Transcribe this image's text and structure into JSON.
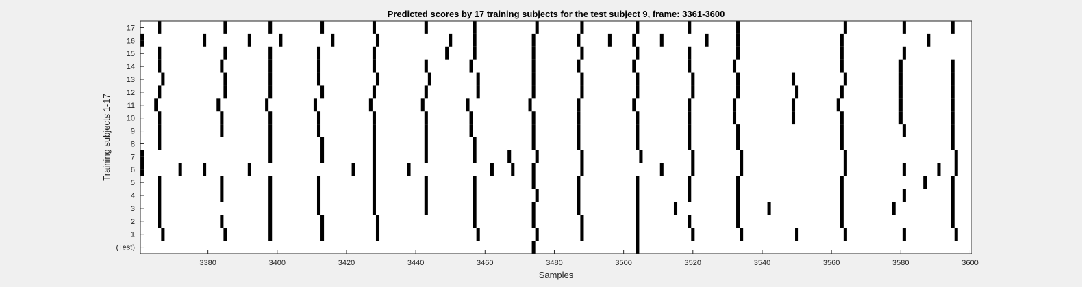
{
  "chart_data": {
    "type": "raster",
    "title": "Predicted scores by 17 training subjects for the test subject 9, frame: 3361-3600",
    "xlabel": "Samples",
    "ylabel": "Training subjects 1-17",
    "xlim": [
      3361,
      3600
    ],
    "xticks": [
      3380,
      3400,
      3420,
      3440,
      3460,
      3480,
      3500,
      3520,
      3540,
      3560,
      3580,
      3600
    ],
    "ytick_labels": [
      "(Test)",
      "1",
      "2",
      "3",
      "4",
      "5",
      "6",
      "7",
      "8",
      "9",
      "10",
      "11",
      "12",
      "13",
      "14",
      "15",
      "16",
      "17"
    ],
    "rows": [
      {
        "label": "(Test)",
        "samples": [
          3474,
          3504
        ]
      },
      {
        "label": "1",
        "samples": [
          3367,
          3385,
          3398,
          3413,
          3429,
          3458,
          3475,
          3488,
          3504,
          3520,
          3534,
          3550,
          3564,
          3581,
          3596
        ]
      },
      {
        "label": "2",
        "samples": [
          3366,
          3384,
          3398,
          3413,
          3429,
          3457,
          3474,
          3488,
          3504,
          3519,
          3533,
          3563,
          3595
        ]
      },
      {
        "label": "3",
        "samples": [
          3366,
          3398,
          3412,
          3428,
          3443,
          3457,
          3474,
          3487,
          3504,
          3515,
          3533,
          3542,
          3563,
          3578,
          3595
        ]
      },
      {
        "label": "4",
        "samples": [
          3366,
          3384,
          3398,
          3412,
          3428,
          3443,
          3457,
          3475,
          3487,
          3504,
          3519,
          3533,
          3563,
          3581,
          3595
        ]
      },
      {
        "label": "5",
        "samples": [
          3366,
          3384,
          3398,
          3412,
          3428,
          3443,
          3457,
          3474,
          3487,
          3504,
          3519,
          3533,
          3563,
          3587,
          3595
        ]
      },
      {
        "label": "6",
        "samples": [
          3361,
          3372,
          3379,
          3392,
          3422,
          3428,
          3438,
          3462,
          3468,
          3474,
          3488,
          3511,
          3520,
          3534,
          3564,
          3581,
          3591,
          3596
        ]
      },
      {
        "label": "7",
        "samples": [
          3361,
          3398,
          3413,
          3428,
          3443,
          3457,
          3467,
          3475,
          3488,
          3505,
          3520,
          3534,
          3564,
          3596
        ]
      },
      {
        "label": "8",
        "samples": [
          3366,
          3398,
          3413,
          3428,
          3443,
          3457,
          3474,
          3487,
          3504,
          3519,
          3533,
          3563,
          3595
        ]
      },
      {
        "label": "9",
        "samples": [
          3366,
          3384,
          3398,
          3412,
          3428,
          3443,
          3456,
          3474,
          3487,
          3504,
          3519,
          3533,
          3563,
          3581,
          3595
        ]
      },
      {
        "label": "10",
        "samples": [
          3366,
          3384,
          3398,
          3412,
          3428,
          3443,
          3456,
          3474,
          3487,
          3504,
          3519,
          3532,
          3549,
          3563,
          3580,
          3595
        ]
      },
      {
        "label": "11",
        "samples": [
          3365,
          3383,
          3397,
          3411,
          3427,
          3442,
          3455,
          3473,
          3487,
          3503,
          3519,
          3532,
          3549,
          3562,
          3580,
          3595
        ]
      },
      {
        "label": "12",
        "samples": [
          3366,
          3385,
          3398,
          3413,
          3428,
          3443,
          3458,
          3474,
          3488,
          3504,
          3520,
          3533,
          3550,
          3563,
          3580,
          3595
        ]
      },
      {
        "label": "13",
        "samples": [
          3367,
          3385,
          3398,
          3412,
          3429,
          3444,
          3458,
          3474,
          3488,
          3504,
          3520,
          3533,
          3549,
          3564,
          3580,
          3595
        ]
      },
      {
        "label": "14",
        "samples": [
          3366,
          3384,
          3398,
          3412,
          3428,
          3443,
          3456,
          3474,
          3487,
          3503,
          3519,
          3532,
          3563,
          3580,
          3595
        ]
      },
      {
        "label": "15",
        "samples": [
          3366,
          3385,
          3398,
          3412,
          3428,
          3449,
          3457,
          3474,
          3488,
          3504,
          3519,
          3533,
          3563,
          3581
        ]
      },
      {
        "label": "16",
        "samples": [
          3361,
          3379,
          3392,
          3401,
          3416,
          3429,
          3450,
          3457,
          3474,
          3487,
          3496,
          3503,
          3511,
          3524,
          3533,
          3563,
          3588
        ]
      },
      {
        "label": "17",
        "samples": [
          3366,
          3385,
          3398,
          3413,
          3428,
          3443,
          3457,
          3475,
          3488,
          3504,
          3519,
          3533,
          3564,
          3581,
          3595
        ]
      }
    ]
  }
}
